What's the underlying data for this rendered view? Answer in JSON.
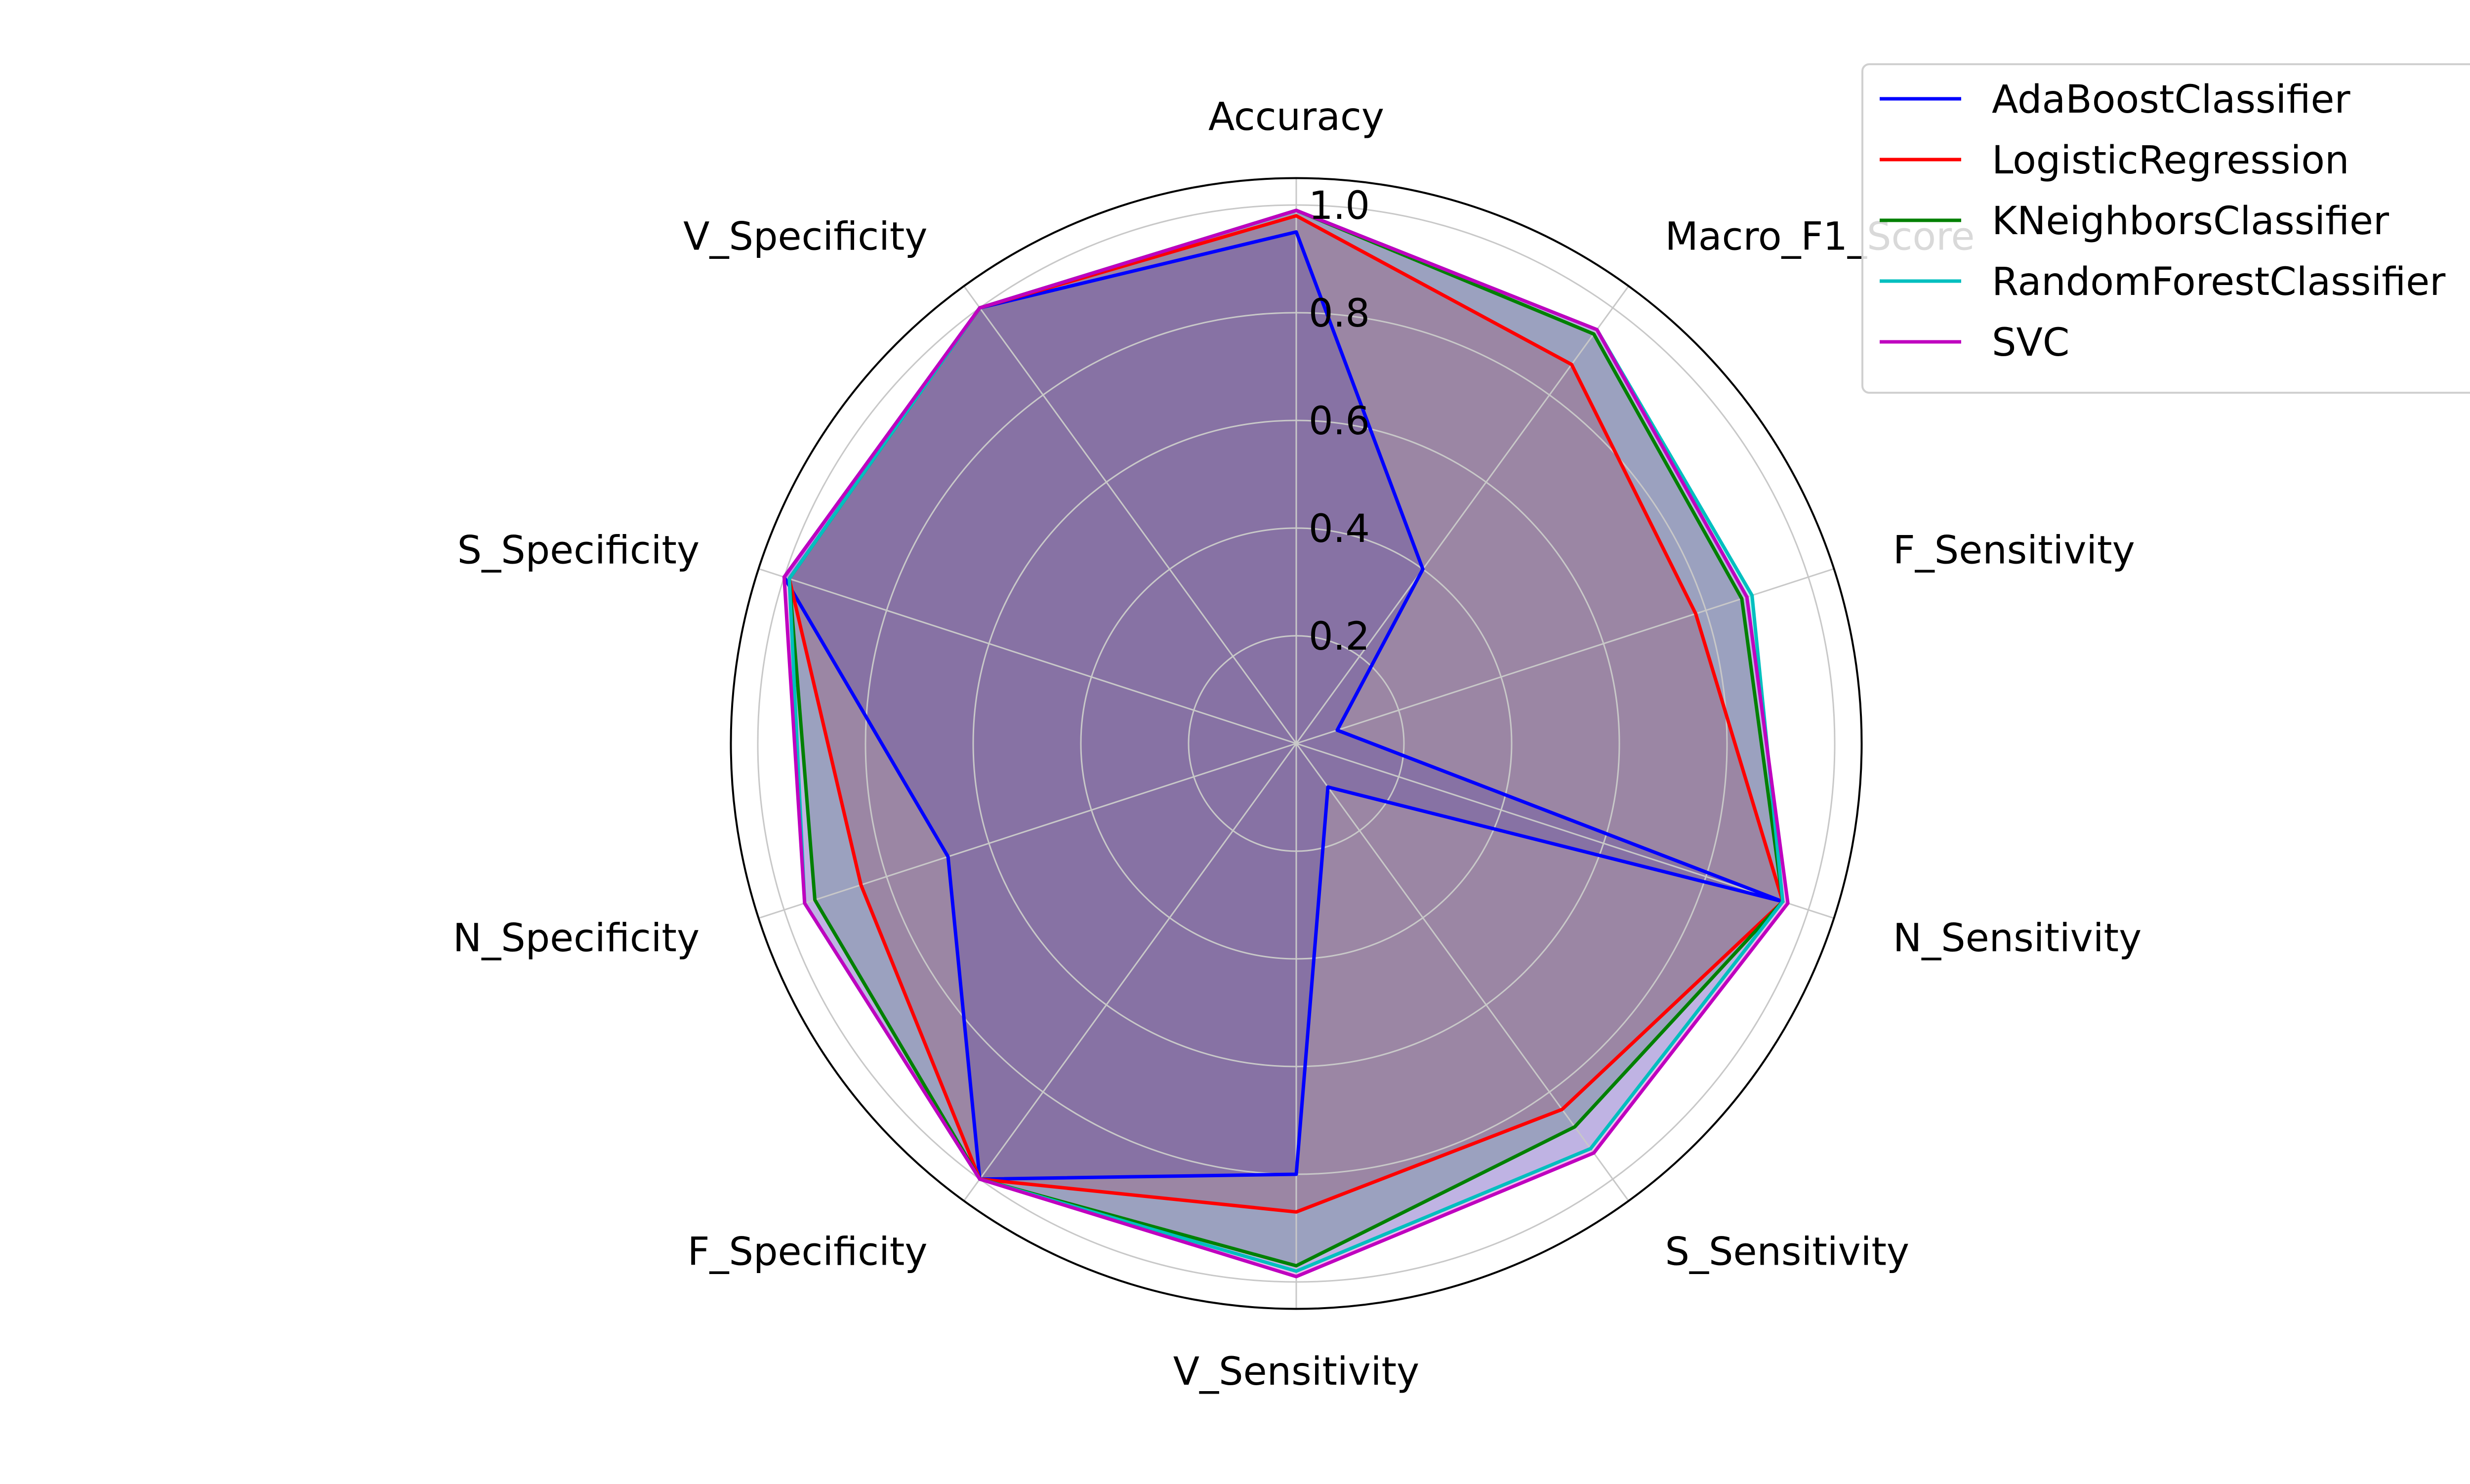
{
  "chart_data": {
    "type": "radar",
    "title": "",
    "axes": [
      "Accuracy",
      "Macro_F1_Score",
      "F_Sensitivity",
      "N_Sensitivity",
      "S_Sensitivity",
      "V_Sensitivity",
      "F_Specificity",
      "N_Specificity",
      "S_Specificity",
      "V_Specificity"
    ],
    "radial_ticks": [
      "0.2",
      "0.4",
      "0.6",
      "0.8",
      "1.0"
    ],
    "radial_tick_values": [
      0.2,
      0.4,
      0.6,
      0.8,
      1.0
    ],
    "rlim": [
      0,
      1.05
    ],
    "grid": true,
    "legend_position": "top-right",
    "series": [
      {
        "name": "AdaBoostClassifier",
        "color": "#0000ff",
        "values": [
          0.95,
          0.4,
          0.08,
          0.95,
          0.1,
          0.8,
          1.0,
          0.68,
          1.0,
          1.0
        ]
      },
      {
        "name": "LogisticRegression",
        "color": "#ff0000",
        "values": [
          0.98,
          0.87,
          0.78,
          0.95,
          0.84,
          0.87,
          1.0,
          0.85,
          0.99,
          1.0
        ]
      },
      {
        "name": "KNeighborsClassifier",
        "color": "#008000",
        "values": [
          0.99,
          0.94,
          0.87,
          0.95,
          0.88,
          0.97,
          1.0,
          0.94,
          0.99,
          1.0
        ]
      },
      {
        "name": "RandomForestClassifier",
        "color": "#00bfbf",
        "values": [
          0.99,
          0.95,
          0.89,
          0.95,
          0.93,
          0.98,
          1.0,
          0.96,
          0.99,
          1.0
        ]
      },
      {
        "name": "SVC",
        "color": "#bf00bf",
        "values": [
          0.99,
          0.95,
          0.88,
          0.96,
          0.94,
          0.99,
          1.0,
          0.96,
          1.0,
          1.0
        ]
      }
    ]
  }
}
